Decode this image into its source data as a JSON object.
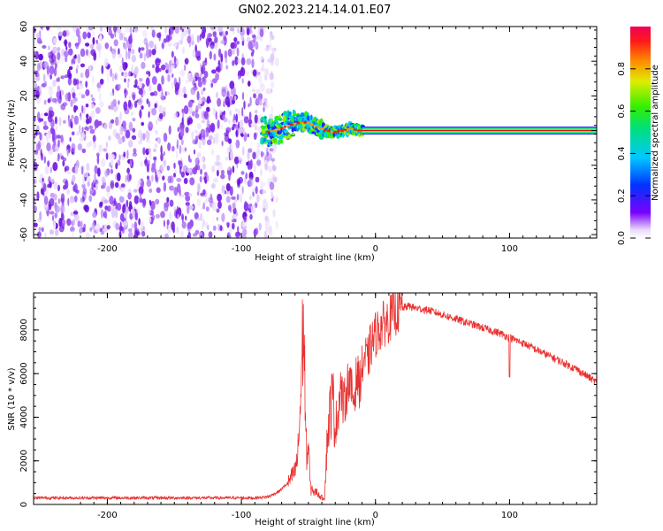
{
  "title": "GN02.2023.214.14.01.E07",
  "colors": {
    "spec_noise": "#6a0dd8",
    "snr_line": "#e8312f",
    "signal_core": "#dd2200"
  },
  "chart_data": [
    {
      "type": "heatmap",
      "title": "GN02.2023.214.14.01.E07",
      "xlabel": "Height of straight line (km)",
      "ylabel": "Frequency (Hz)",
      "xlim": [
        -255,
        165
      ],
      "ylim": [
        -62,
        60
      ],
      "xticks": [
        -200,
        -100,
        0,
        100
      ],
      "yticks": [
        -60,
        -40,
        -20,
        0,
        20,
        40,
        60
      ],
      "colorbar": {
        "label": "Normalized spectral amplitude",
        "range": [
          0,
          1
        ],
        "ticks": [
          "0.0",
          "0.2",
          "0.4",
          "0.6",
          "0.8"
        ],
        "colormap": "rainbow"
      },
      "noise_region_x": [
        -255,
        -80
      ],
      "signal_center_hz": [
        [
          -82,
          -1
        ],
        [
          -75,
          0
        ],
        [
          -68,
          2
        ],
        [
          -60,
          4
        ],
        [
          -52,
          5
        ],
        [
          -46,
          3
        ],
        [
          -40,
          1
        ],
        [
          -32,
          -1
        ],
        [
          -25,
          0
        ],
        [
          -18,
          1
        ],
        [
          -12,
          0
        ],
        [
          0,
          0
        ],
        [
          165,
          0
        ]
      ]
    },
    {
      "type": "line",
      "xlabel": "Height of straight line (km)",
      "ylabel": "SNR (10 * v/v)",
      "xlim": [
        -255,
        165
      ],
      "ylim": [
        0,
        9700
      ],
      "xticks": [
        -200,
        -100,
        0,
        100
      ],
      "yticks": [
        0,
        2000,
        4000,
        6000,
        8000
      ],
      "series": [
        {
          "x": [
            -255,
            -200,
            -150,
            -100,
            -90,
            -80,
            -72,
            -65,
            -60,
            -58,
            -56,
            -55,
            -54,
            -53,
            -52,
            -51,
            -50,
            -49,
            -48,
            -47,
            -46,
            -44,
            -42,
            -40,
            -38,
            -36,
            -34,
            -32,
            -30,
            -28,
            -26,
            -24,
            -22,
            -20,
            -18,
            -16,
            -14,
            -12,
            -10,
            -8,
            -6,
            -4,
            -2,
            0,
            5,
            10,
            15,
            20,
            25,
            30,
            40,
            50,
            60,
            70,
            80,
            90,
            95,
            98,
            100,
            102,
            110,
            120,
            130,
            140,
            150,
            160,
            165
          ],
          "y": [
            300,
            300,
            300,
            300,
            300,
            350,
            600,
            1000,
            1500,
            2200,
            4500,
            6500,
            8000,
            7200,
            3000,
            2200,
            2800,
            1200,
            600,
            800,
            500,
            600,
            400,
            300,
            300,
            3000,
            4200,
            5000,
            3500,
            4200,
            5500,
            4500,
            5000,
            5800,
            5200,
            4800,
            6000,
            5500,
            6200,
            6800,
            6500,
            7200,
            7500,
            7800,
            8200,
            8500,
            8800,
            9000,
            9100,
            9000,
            8900,
            8700,
            8500,
            8300,
            8100,
            7900,
            7800,
            7700,
            7650,
            7600,
            7400,
            7100,
            6800,
            6500,
            6200,
            5800,
            5600
          ]
        }
      ]
    }
  ]
}
